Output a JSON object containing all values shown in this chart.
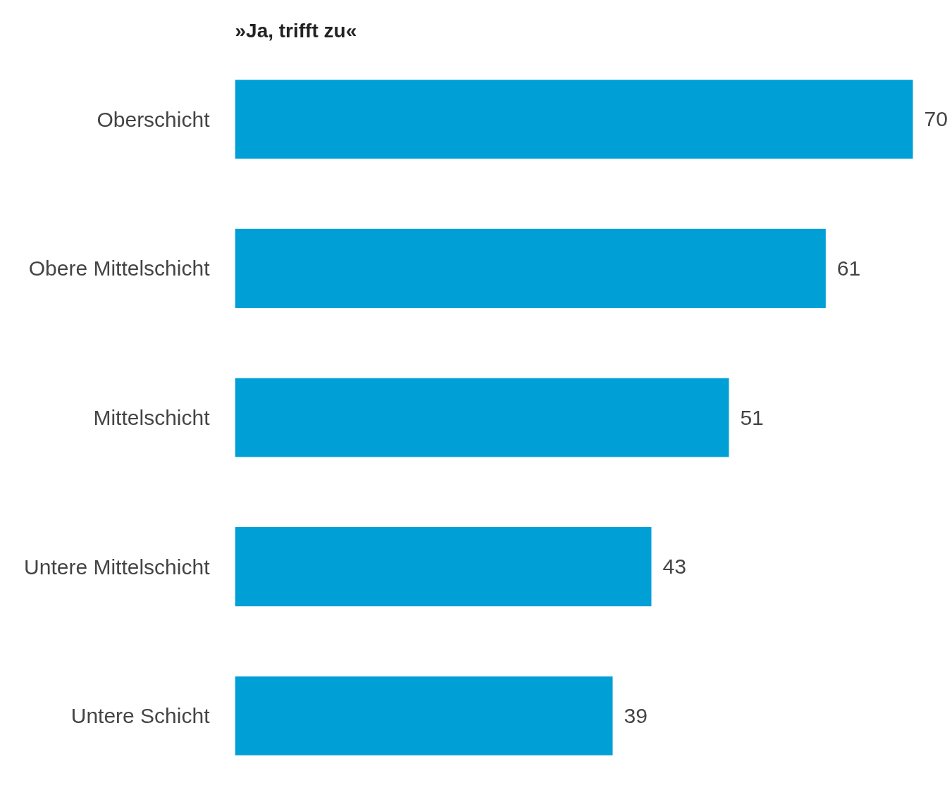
{
  "chart_data": {
    "type": "bar",
    "orientation": "horizontal",
    "title": "»Ja, trifft zu«",
    "categories": [
      "Oberschicht",
      "Obere Mittelschicht",
      "Mittelschicht",
      "Untere Mittelschicht",
      "Untere Schicht"
    ],
    "values": [
      70,
      61,
      51,
      43,
      39
    ],
    "color": "#009fd6",
    "data_labels": true,
    "grid": false
  }
}
